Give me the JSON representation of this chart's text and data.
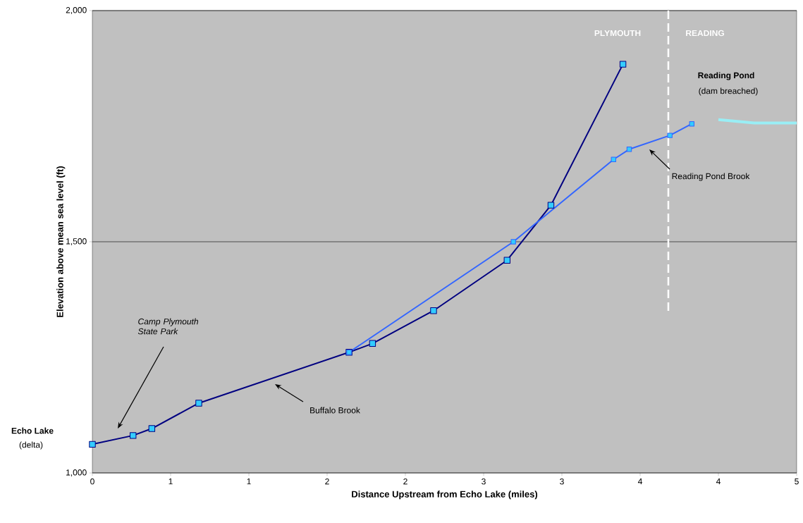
{
  "chart_data": {
    "type": "line",
    "xlabel": "Distance Upstream from Echo Lake (miles)",
    "ylabel": "Elevation above mean sea level (ft)",
    "xlim": [
      0,
      4.5
    ],
    "ylim": [
      1000,
      2000
    ],
    "xticks": [
      0,
      {
        "value": 0.5,
        "label": "1"
      },
      1,
      {
        "value": 1.5,
        "label": "2"
      },
      2,
      {
        "value": 2.5,
        "label": "3"
      },
      3,
      {
        "value": 3.5,
        "label": "4"
      },
      4,
      {
        "value": 4.5,
        "label": "5"
      }
    ],
    "yticks": [
      {
        "value": 1000,
        "label": "1,000"
      },
      {
        "value": 1500,
        "label": "1,500"
      },
      {
        "value": 2000,
        "label": "2,000"
      }
    ],
    "grid": "y",
    "marker": "square",
    "line_style": "solid",
    "series": [
      {
        "color": "#000080",
        "x": [
          0,
          0.26,
          0.38,
          0.68,
          1.64,
          1.79,
          2.18,
          2.65,
          2.93,
          3.39
        ],
        "values": [
          1062,
          1081,
          1096,
          1151,
          1261,
          1280,
          1351,
          1460,
          1579,
          1884
        ]
      },
      {
        "color": "#3366ff",
        "x": [
          1.64,
          2.69,
          3.33,
          3.43,
          3.69,
          3.83
        ],
        "values": [
          1261,
          1500,
          1678,
          1700,
          1730,
          1755
        ]
      },
      {
        "color": "#99eef5",
        "marker": "none",
        "x": [
          4.0,
          4.23,
          4.5
        ],
        "values": [
          1764,
          1757,
          1757
        ]
      }
    ],
    "ref_lines": [
      {
        "axis": "x",
        "value": 3.68,
        "color": "#ffffff",
        "line_style": "dashed"
      }
    ],
    "annotations": [
      "PLYMOUTH",
      "READING",
      "Reading Pond",
      "(dam breached)",
      "Camp Plymouth State Park",
      "Echo Lake",
      "(delta)",
      "Buffalo Brook",
      "Reading Pond Brook"
    ]
  }
}
